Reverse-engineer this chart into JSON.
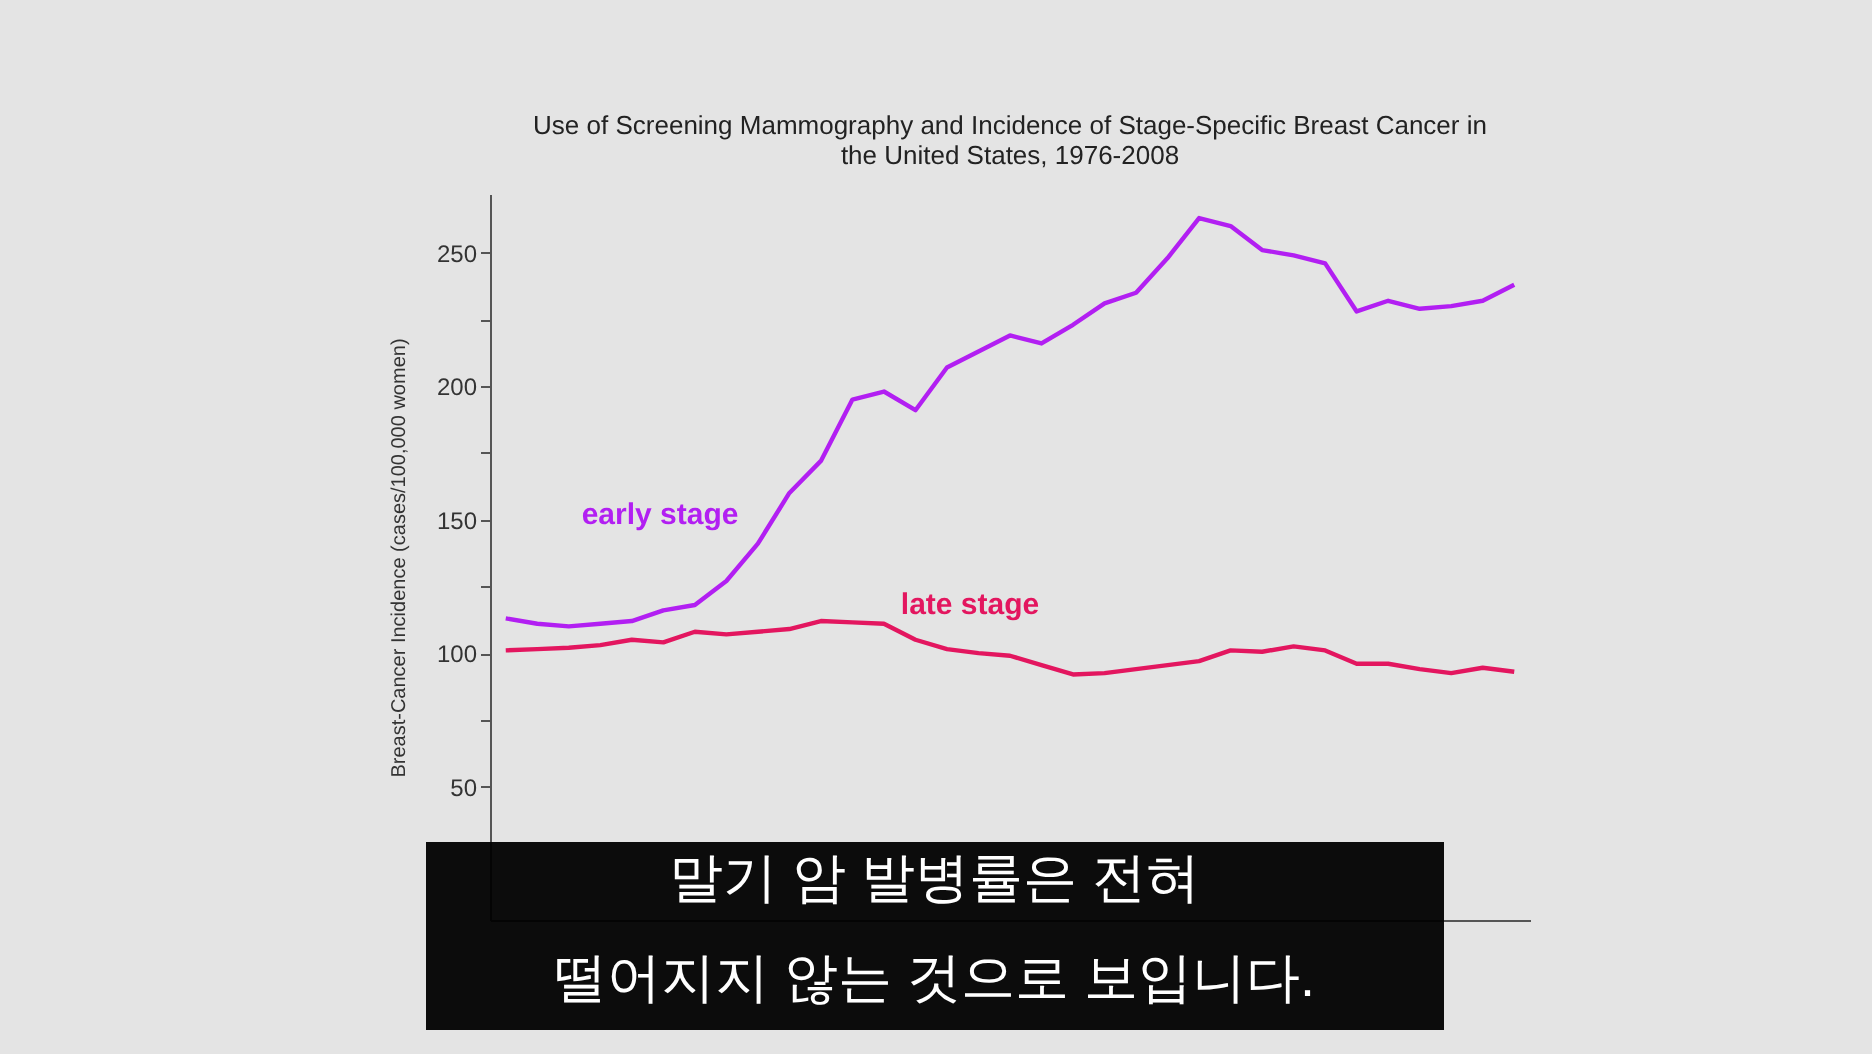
{
  "chart_data": {
    "type": "line",
    "title": [
      "Use of Screening Mammography and Incidence of Stage-Specific Breast Cancer in",
      "the United States, 1976-2008"
    ],
    "ylabel": "Breast-Cancer Incidence (cases/100,000 women)",
    "categories": [
      null,
      null,
      null,
      null,
      null,
      null,
      null,
      null,
      null,
      null,
      null,
      null,
      null,
      null,
      null,
      null,
      null,
      null,
      null,
      null,
      null,
      null,
      null,
      null,
      null,
      null,
      null,
      null,
      null,
      null,
      null,
      null,
      null
    ],
    "series": [
      {
        "name": "early stage",
        "color": "#b21ff2",
        "values": [
          113,
          111,
          110,
          111,
          112,
          116,
          118,
          127,
          141,
          160,
          172,
          195,
          198,
          191,
          207,
          213,
          219,
          216,
          223,
          231,
          235,
          248,
          263,
          260,
          251,
          249,
          246,
          228,
          232,
          229,
          230,
          232,
          238
        ]
      },
      {
        "name": "late stage",
        "color": "#e3165f",
        "values": [
          101,
          101.5,
          102,
          103,
          105,
          104,
          108,
          107,
          108,
          109,
          112,
          111.5,
          111,
          105,
          101.5,
          100,
          99,
          95.5,
          92,
          92.5,
          94,
          95.5,
          97,
          101,
          100.5,
          102.5,
          101,
          96,
          96,
          94,
          92.5,
          94.5,
          93
        ]
      }
    ],
    "ylim": [
      0,
      272
    ],
    "yticks": [
      50,
      {
        "value": 75,
        "label": null
      },
      100,
      {
        "value": 125,
        "label": null
      },
      150,
      {
        "value": 175,
        "label": null
      },
      200,
      {
        "value": 225,
        "label": null
      },
      250
    ],
    "tick_labels": "y",
    "grid": false,
    "legend": false,
    "marker": "none",
    "line_style": "solid",
    "annotations": [
      "말기 암 발병률은 전혀\n떨어지지 않는 것으로 보입니다."
    ]
  }
}
